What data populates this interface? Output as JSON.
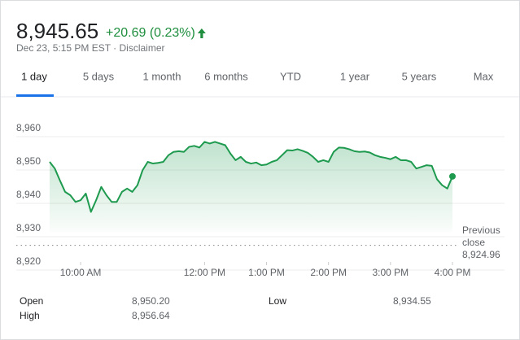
{
  "header": {
    "price": "8,945.65",
    "change": "+20.69 (0.23%)",
    "subtitle": "Dec 23, 5:15 PM EST · Disclaimer"
  },
  "tabs": [
    "1 day",
    "5 days",
    "1 month",
    "6 months",
    "YTD",
    "1 year",
    "5 years",
    "Max"
  ],
  "selected_tab": 0,
  "chart_data": {
    "type": "line",
    "color": "#1e9a4f",
    "x": [
      570,
      575,
      580,
      585,
      590,
      595,
      600,
      605,
      610,
      615,
      620,
      625,
      630,
      635,
      640,
      645,
      650,
      655,
      660,
      665,
      670,
      675,
      680,
      685,
      690,
      695,
      700,
      705,
      710,
      715,
      720,
      725,
      730,
      735,
      740,
      745,
      750,
      755,
      760,
      765,
      770,
      775,
      780,
      785,
      790,
      795,
      800,
      805,
      810,
      815,
      820,
      825,
      830,
      835,
      840,
      845,
      850,
      855,
      860,
      865,
      870,
      875,
      880,
      885,
      890,
      895,
      900,
      905,
      910,
      915,
      920,
      925,
      930,
      935,
      940,
      945,
      950,
      955,
      960
    ],
    "values": [
      8950,
      8948,
      8944.4,
      8941,
      8940,
      8938,
      8938.5,
      8940.5,
      8935,
      8938.5,
      8942.5,
      8940,
      8938,
      8938,
      8941,
      8942,
      8941,
      8943,
      8947.5,
      8950,
      8949.5,
      8949.7,
      8950,
      8952,
      8953,
      8953.2,
      8953,
      8954.5,
      8954.8,
      8954.3,
      8956,
      8955.5,
      8956,
      8955.5,
      8955,
      8952.5,
      8950.5,
      8951.5,
      8950,
      8949.5,
      8949.8,
      8949,
      8949.2,
      8950,
      8950.5,
      8952,
      8953.5,
      8953.4,
      8953.8,
      8953.3,
      8952.7,
      8951.5,
      8950,
      8950.5,
      8950,
      8953,
      8954.3,
      8954.2,
      8953.8,
      8953.2,
      8953,
      8953.1,
      8952.8,
      8952,
      8951.5,
      8951.2,
      8950.8,
      8951.5,
      8950.5,
      8950.5,
      8950,
      8948,
      8948.5,
      8949,
      8948.8,
      8944.8,
      8943,
      8942,
      8945.65
    ],
    "xlim": [
      570,
      960
    ],
    "xticks": [
      {
        "value": 600,
        "label": "10:00 AM"
      },
      {
        "value": 720,
        "label": "12:00 PM"
      },
      {
        "value": 780,
        "label": "1:00 PM"
      },
      {
        "value": 840,
        "label": "2:00 PM"
      },
      {
        "value": 900,
        "label": "3:00 PM"
      },
      {
        "value": 960,
        "label": "4:00 PM"
      }
    ],
    "ylim": [
      8920,
      8960
    ],
    "yticks": [
      {
        "value": 8920,
        "label": "8,920"
      },
      {
        "value": 8930,
        "label": "8,930"
      },
      {
        "value": 8940,
        "label": "8,940"
      },
      {
        "value": 8950,
        "label": "8,950"
      },
      {
        "value": 8960,
        "label": "8,960"
      }
    ],
    "grid": true,
    "previous_close": {
      "label": "Previous close",
      "value": 8924.96,
      "value_label": "8,924.96"
    }
  },
  "stats": [
    [
      {
        "label": "Open",
        "value": "8,950.20"
      },
      {
        "label": "Low",
        "value": "8,934.55"
      }
    ],
    [
      {
        "label": "High",
        "value": "8,956.64"
      }
    ]
  ]
}
